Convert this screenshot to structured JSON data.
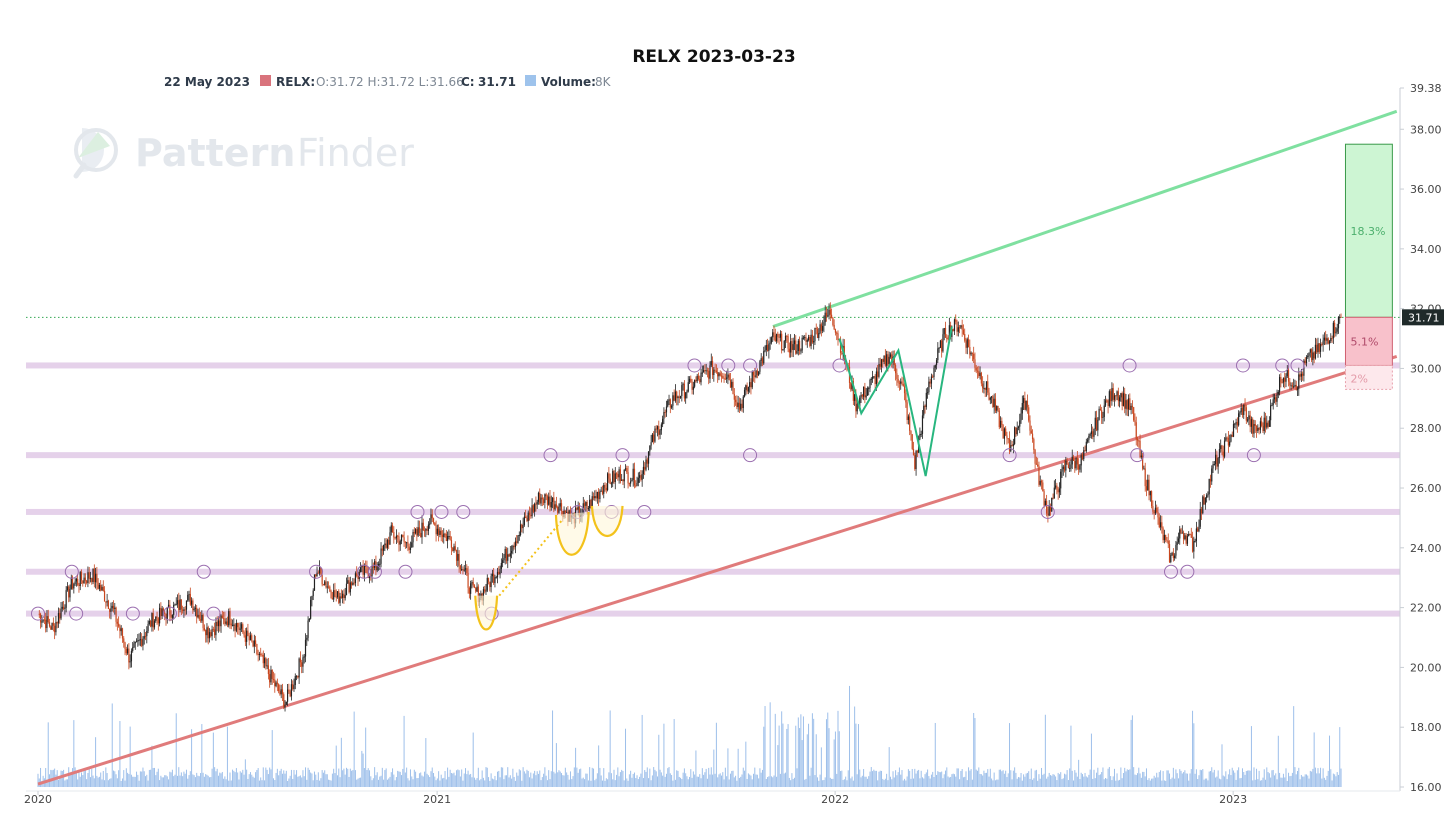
{
  "title": "RELX 2023-03-23",
  "legend": {
    "date": "22 May 2023",
    "symbol": "RELX:",
    "ohlc": "O:31.72 H:31.72 L:31.66",
    "close_label": "C:",
    "close_value": "31.71",
    "volume_label": "Volume:",
    "volume_value": "8K"
  },
  "watermark": {
    "brand_strong": "Pattern",
    "brand_light": "Finder"
  },
  "colors": {
    "up": "#222222",
    "down": "#c8461e",
    "volume": "#8cb4e6",
    "support_band": "#d7b8df",
    "resistance_line": "#7fe0a0",
    "support_line": "#e07b7b",
    "target_fill": "#cdf5d3",
    "stop_fill": "#f8c1cb",
    "pattern_yellow": "#f3c21b",
    "pattern_green": "#28b67f",
    "last_price_bg": "#1f2a2a"
  },
  "chart_data": {
    "type": "candlestick",
    "title": "RELX 2023-03-23",
    "ylim": [
      16,
      39.38
    ],
    "y_ticks": [
      "16.00",
      "18.00",
      "20.00",
      "22.00",
      "24.00",
      "26.00",
      "28.00",
      "30.00",
      "32.00",
      "34.00",
      "36.00",
      "38.00",
      "39.38"
    ],
    "x_ticks": [
      "2020",
      "2021",
      "2022",
      "2023"
    ],
    "last_price": "31.71",
    "price_path": [
      [
        "2020-01-01",
        21.8
      ],
      [
        "2020-01-15",
        21.3
      ],
      [
        "2020-02-01",
        22.8
      ],
      [
        "2020-02-20",
        23.1
      ],
      [
        "2020-03-10",
        21.9
      ],
      [
        "2020-03-25",
        20.3
      ],
      [
        "2020-04-15",
        21.6
      ],
      [
        "2020-05-01",
        21.9
      ],
      [
        "2020-05-20",
        22.3
      ],
      [
        "2020-06-05",
        21.2
      ],
      [
        "2020-06-25",
        21.7
      ],
      [
        "2020-07-15",
        20.8
      ],
      [
        "2020-08-01",
        19.7
      ],
      [
        "2020-08-15",
        18.8
      ],
      [
        "2020-09-01",
        20.5
      ],
      [
        "2020-09-12",
        23.3
      ],
      [
        "2020-10-01",
        22.3
      ],
      [
        "2020-10-20",
        23.1
      ],
      [
        "2020-11-05",
        23.3
      ],
      [
        "2020-11-20",
        24.5
      ],
      [
        "2020-12-05",
        24.1
      ],
      [
        "2020-12-25",
        24.9
      ],
      [
        "2021-01-15",
        24.2
      ],
      [
        "2021-02-01",
        22.6
      ],
      [
        "2021-02-10",
        22.4
      ],
      [
        "2021-03-01",
        23.5
      ],
      [
        "2021-03-20",
        24.7
      ],
      [
        "2021-04-05",
        25.7
      ],
      [
        "2021-04-20",
        25.5
      ],
      [
        "2021-05-05",
        25.0
      ],
      [
        "2021-05-20",
        25.4
      ],
      [
        "2021-06-05",
        26.2
      ],
      [
        "2021-06-20",
        26.5
      ],
      [
        "2021-07-05",
        26.3
      ],
      [
        "2021-07-20",
        27.8
      ],
      [
        "2021-08-05",
        29.0
      ],
      [
        "2021-08-25",
        29.5
      ],
      [
        "2021-09-10",
        30.0
      ],
      [
        "2021-09-25",
        29.8
      ],
      [
        "2021-10-05",
        28.7
      ],
      [
        "2021-10-20",
        29.9
      ],
      [
        "2021-11-05",
        31.0
      ],
      [
        "2021-11-25",
        30.7
      ],
      [
        "2021-12-10",
        31.0
      ],
      [
        "2021-12-28",
        31.9
      ],
      [
        "2022-01-10",
        30.3
      ],
      [
        "2022-01-20",
        28.8
      ],
      [
        "2022-02-05",
        29.6
      ],
      [
        "2022-02-20",
        30.5
      ],
      [
        "2022-03-05",
        29.2
      ],
      [
        "2022-03-15",
        26.8
      ],
      [
        "2022-03-28",
        29.5
      ],
      [
        "2022-04-12",
        31.2
      ],
      [
        "2022-04-25",
        31.5
      ],
      [
        "2022-05-10",
        30.1
      ],
      [
        "2022-05-25",
        28.9
      ],
      [
        "2022-06-10",
        27.3
      ],
      [
        "2022-06-25",
        29.0
      ],
      [
        "2022-07-05",
        26.6
      ],
      [
        "2022-07-15",
        25.2
      ],
      [
        "2022-08-01",
        26.8
      ],
      [
        "2022-08-15",
        26.9
      ],
      [
        "2022-09-01",
        28.5
      ],
      [
        "2022-09-15",
        29.3
      ],
      [
        "2022-09-30",
        28.6
      ],
      [
        "2022-10-10",
        26.6
      ],
      [
        "2022-10-25",
        24.8
      ],
      [
        "2022-11-05",
        23.6
      ],
      [
        "2022-11-15",
        24.6
      ],
      [
        "2022-11-25",
        24.1
      ],
      [
        "2022-12-05",
        25.6
      ],
      [
        "2022-12-15",
        26.8
      ],
      [
        "2023-01-01",
        27.9
      ],
      [
        "2023-01-10",
        28.7
      ],
      [
        "2023-01-20",
        27.9
      ],
      [
        "2023-02-01",
        28.2
      ],
      [
        "2023-02-15",
        29.8
      ],
      [
        "2023-03-01",
        29.5
      ],
      [
        "2023-03-10",
        30.3
      ],
      [
        "2023-03-20",
        30.6
      ],
      [
        "2023-03-28",
        31.0
      ],
      [
        "2023-04-10",
        31.7
      ]
    ],
    "horizontal_levels": [
      21.8,
      23.2,
      25.2,
      27.1,
      30.1
    ],
    "resistance_line": [
      [
        "2021-11-05",
        31.4
      ],
      [
        "2023-05-31",
        38.6
      ]
    ],
    "support_line": [
      [
        "2020-01-01",
        16.1
      ],
      [
        "2023-05-31",
        30.4
      ]
    ],
    "target_pct": "18.3%",
    "target_range": [
      31.71,
      37.5
    ],
    "stop_pct": "5.1%",
    "stop_range": [
      30.1,
      31.71
    ],
    "risk_pct": "2%",
    "risk_range": [
      29.3,
      30.1
    ]
  }
}
